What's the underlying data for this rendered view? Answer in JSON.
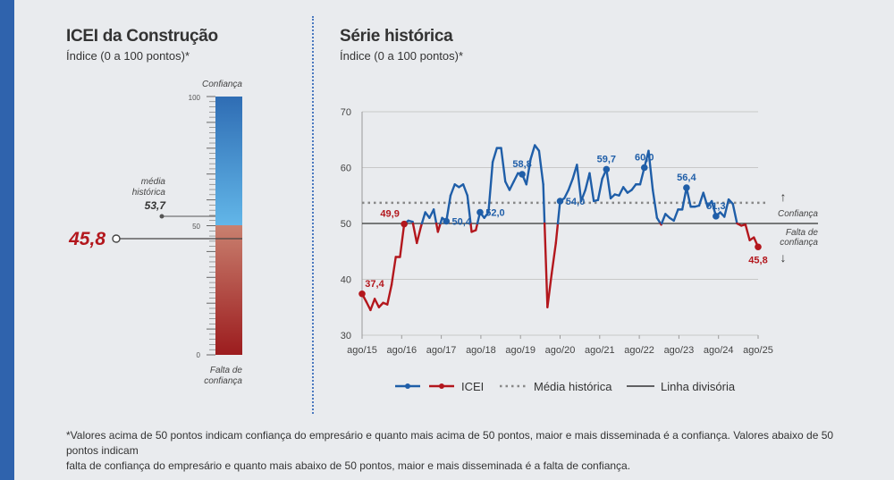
{
  "left_panel": {
    "title": "ICEI da Construção",
    "subtitle": "Índice (0 a 100 pontos)*",
    "gauge": {
      "top_label": "Confiança",
      "bottom_label_line1": "Falta de",
      "bottom_label_line2": "confiança",
      "tick_100": "100",
      "tick_50": "50",
      "tick_0": "0",
      "media_label_line1": "média",
      "media_label_line2": "histórica",
      "media_value": 53.7,
      "media_value_text": "53,7",
      "current_value": 45.8,
      "current_value_text": "45,8",
      "colors": {
        "confidence_top": "#2f6db4",
        "confidence_bottom": "#62b6e8",
        "lack_top": "#c9806f",
        "lack_bottom": "#9c1c1e",
        "current": "#b3171d"
      }
    }
  },
  "right_panel": {
    "title": "Série histórica",
    "subtitle": "Índice (0 a 100 pontos)*",
    "confidence_label": "Confiança",
    "lack_label_line1": "Falta de",
    "lack_label_line2": "confiança"
  },
  "chart_data": {
    "type": "line",
    "title": "Série histórica",
    "ylabel": "Índice (0 a 100 pontos)",
    "ylim": [
      30,
      70
    ],
    "yticks": [
      30,
      40,
      50,
      60,
      70
    ],
    "x_tick_labels": [
      "ago/15",
      "ago/16",
      "ago/17",
      "ago/18",
      "ago/19",
      "ago/20",
      "ago/21",
      "ago/22",
      "ago/23",
      "ago/24",
      "ago/25"
    ],
    "x_start": "ago/15",
    "x_end": "ago/25",
    "threshold": 50,
    "media_historica": 53.7,
    "series": [
      {
        "name": "ICEI",
        "color_above": "#1f5ea8",
        "color_below": "#b3171d",
        "values": [
          37.4,
          36,
          34.5,
          36.5,
          35,
          35.8,
          35.5,
          39,
          44,
          44,
          49.9,
          50.5,
          50.3,
          46.5,
          49.5,
          52,
          51,
          52.5,
          48.5,
          51,
          50.4,
          55,
          57,
          56.5,
          57,
          55,
          48.5,
          48.8,
          52,
          51,
          52,
          61,
          63.5,
          63.5,
          57.5,
          56,
          57.5,
          59,
          58.8,
          57,
          61.5,
          64,
          63,
          57,
          35,
          41,
          46.5,
          54,
          54.5,
          56,
          58,
          60.5,
          54,
          56,
          59,
          54,
          54.2,
          58,
          59.7,
          54.5,
          55.2,
          55,
          56.5,
          55.5,
          56,
          57,
          57,
          60,
          63,
          56,
          51,
          49.8,
          51.7,
          51,
          50.5,
          52.5,
          52.5,
          56.4,
          53,
          53,
          53.2,
          55.5,
          53,
          54,
          51.3,
          52,
          51.2,
          54.3,
          53.5,
          50,
          49.6,
          49.8,
          47,
          47.5,
          45.8
        ]
      }
    ],
    "annotations": [
      {
        "index": 0,
        "value": 37.4,
        "text": "37,4"
      },
      {
        "index": 10,
        "value": 49.9,
        "text": "49,9"
      },
      {
        "index": 20,
        "value": 50.4,
        "text": "50,4"
      },
      {
        "index": 28,
        "value": 52.0,
        "text": "52,0"
      },
      {
        "index": 38,
        "value": 58.8,
        "text": "58,8"
      },
      {
        "index": 47,
        "value": 54.0,
        "text": "54,0"
      },
      {
        "index": 58,
        "value": 59.7,
        "text": "59,7"
      },
      {
        "index": 67,
        "value": 60.0,
        "text": "60,0"
      },
      {
        "index": 77,
        "value": 56.4,
        "text": "56,4"
      },
      {
        "index": 84,
        "value": 51.3,
        "text": "51,3"
      },
      {
        "index": 94,
        "value": 45.8,
        "text": "45,8"
      }
    ],
    "legend": {
      "position": "bottom",
      "icei": "ICEI",
      "media": "Média histórica",
      "linha": "Linha divisória"
    }
  },
  "footnote": {
    "line1": "*Valores acima de 50 pontos indicam confiança do empresário e quanto mais acima de 50 pontos, maior e mais disseminada é a confiança. Valores abaixo de 50 pontos indicam",
    "line2": "falta de confiança do empresário e quanto mais abaixo de 50 pontos, maior e mais disseminada é a falta de confiança."
  }
}
